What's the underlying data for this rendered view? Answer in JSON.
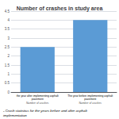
{
  "chart_data": {
    "type": "bar",
    "title": "Number of crashes in study area",
    "categories": [
      "the year after implementing asphalt\npavement",
      "The year before implementing asphalt\npavement"
    ],
    "sub_labels": [
      "Number of crashes",
      "Number of crashes"
    ],
    "values": [
      2.5,
      4.0
    ],
    "color": "#5B9BD5",
    "ylim": [
      0,
      4.5
    ],
    "yticks": [
      0,
      0.5,
      1,
      1.5,
      2,
      2.5,
      3,
      3.5,
      4,
      4.5
    ],
    "grid": true,
    "caption": "- Crash statistics for the years before and after asphalt\nimplementation"
  }
}
